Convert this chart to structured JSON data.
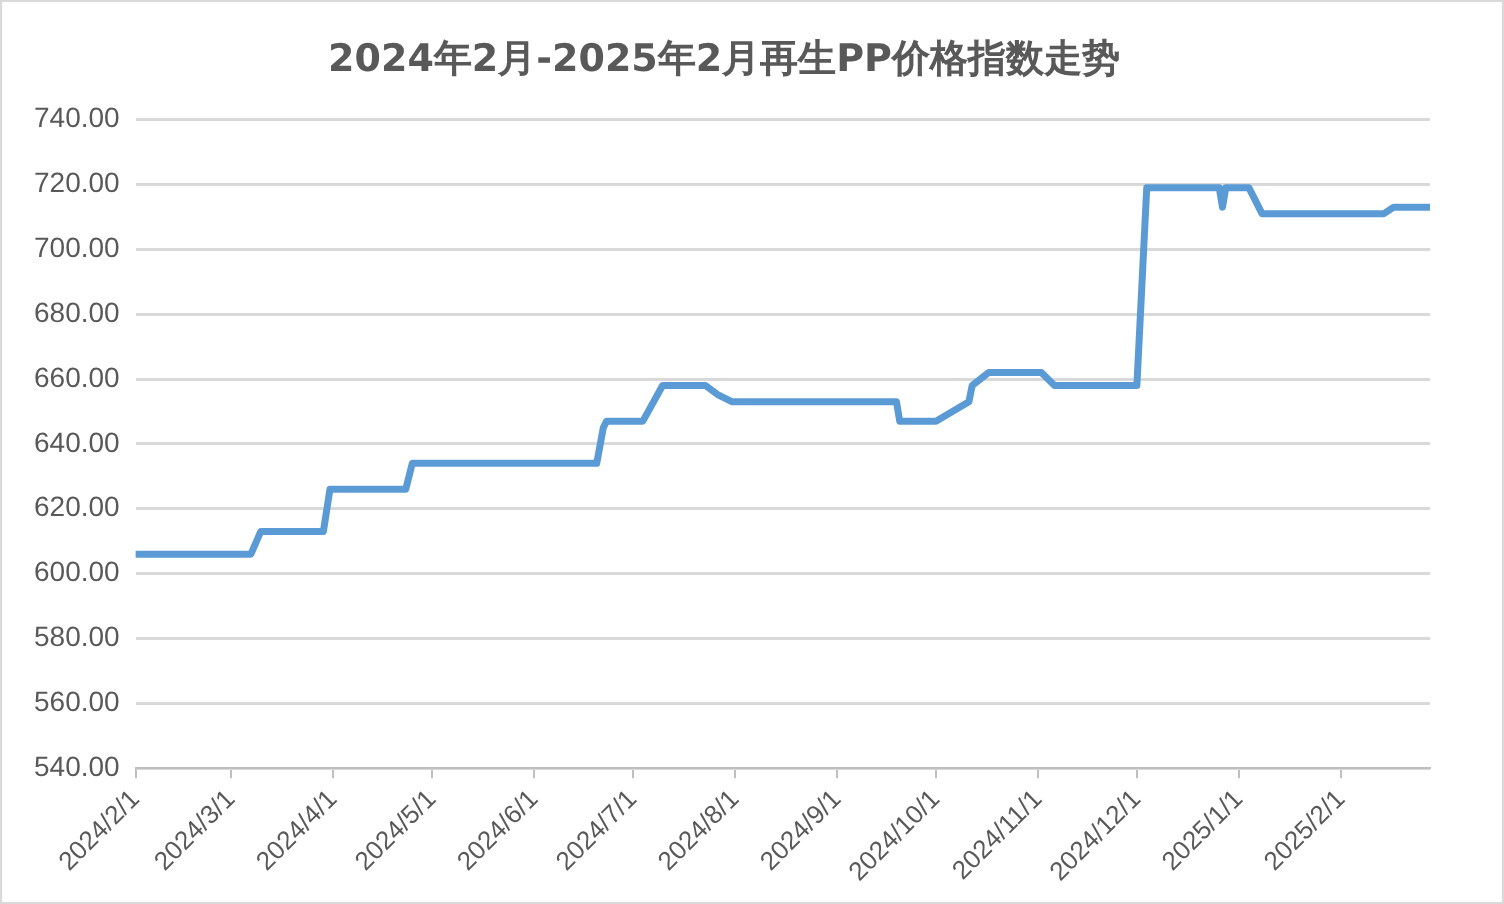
{
  "chart_data": {
    "type": "line",
    "title": "2024年2月-2025年2月再生PP价格指数走势",
    "x": [
      "2024-02-01",
      "2024-03-07",
      "2024-03-10",
      "2024-03-29",
      "2024-03-31",
      "2024-04-23",
      "2024-04-25",
      "2024-06-20",
      "2024-06-22",
      "2024-06-23",
      "2024-07-04",
      "2024-07-10",
      "2024-07-23",
      "2024-07-27",
      "2024-07-31",
      "2024-09-19",
      "2024-09-20",
      "2024-10-01",
      "2024-10-11",
      "2024-10-12",
      "2024-10-17",
      "2024-11-02",
      "2024-11-06",
      "2024-12-01",
      "2024-12-04",
      "2024-12-26",
      "2024-12-27",
      "2024-12-28",
      "2025-01-04",
      "2025-01-08",
      "2025-02-14",
      "2025-02-17",
      "2025-02-28"
    ],
    "series": [
      {
        "color": "#5b9bd5",
        "values": [
          606,
          606,
          613,
          613,
          626,
          626,
          634,
          634,
          645,
          647,
          647,
          658,
          658,
          655,
          653,
          653,
          647,
          647,
          653,
          658,
          662,
          662,
          658,
          658,
          719,
          719,
          713,
          719,
          719,
          711,
          711,
          713,
          713
        ]
      }
    ],
    "xlim": [
      "2024-02-01",
      "2025-02-28"
    ],
    "xticks": [
      {
        "value": "2024-02-01",
        "label": "2024/2/1"
      },
      {
        "value": "2024-03-01",
        "label": "2024/3/1"
      },
      {
        "value": "2024-04-01",
        "label": "2024/4/1"
      },
      {
        "value": "2024-05-01",
        "label": "2024/5/1"
      },
      {
        "value": "2024-06-01",
        "label": "2024/6/1"
      },
      {
        "value": "2024-07-01",
        "label": "2024/7/1"
      },
      {
        "value": "2024-08-01",
        "label": "2024/8/1"
      },
      {
        "value": "2024-09-01",
        "label": "2024/9/1"
      },
      {
        "value": "2024-10-01",
        "label": "2024/10/1"
      },
      {
        "value": "2024-11-01",
        "label": "2024/11/1"
      },
      {
        "value": "2024-12-01",
        "label": "2024/12/1"
      },
      {
        "value": "2025-01-01",
        "label": "2025/1/1"
      },
      {
        "value": "2025-02-01",
        "label": "2025/2/1"
      }
    ],
    "ylim": [
      540,
      740
    ],
    "yticks": [
      {
        "value": 540,
        "label": "540.00"
      },
      {
        "value": 560,
        "label": "560.00"
      },
      {
        "value": 580,
        "label": "580.00"
      },
      {
        "value": 600,
        "label": "600.00"
      },
      {
        "value": 620,
        "label": "620.00"
      },
      {
        "value": 640,
        "label": "640.00"
      },
      {
        "value": 660,
        "label": "660.00"
      },
      {
        "value": 680,
        "label": "680.00"
      },
      {
        "value": 700,
        "label": "700.00"
      },
      {
        "value": 720,
        "label": "720.00"
      },
      {
        "value": 740,
        "label": "740.00"
      }
    ],
    "grid": "y",
    "legend": false,
    "marker": "none",
    "line_style": "solid"
  }
}
